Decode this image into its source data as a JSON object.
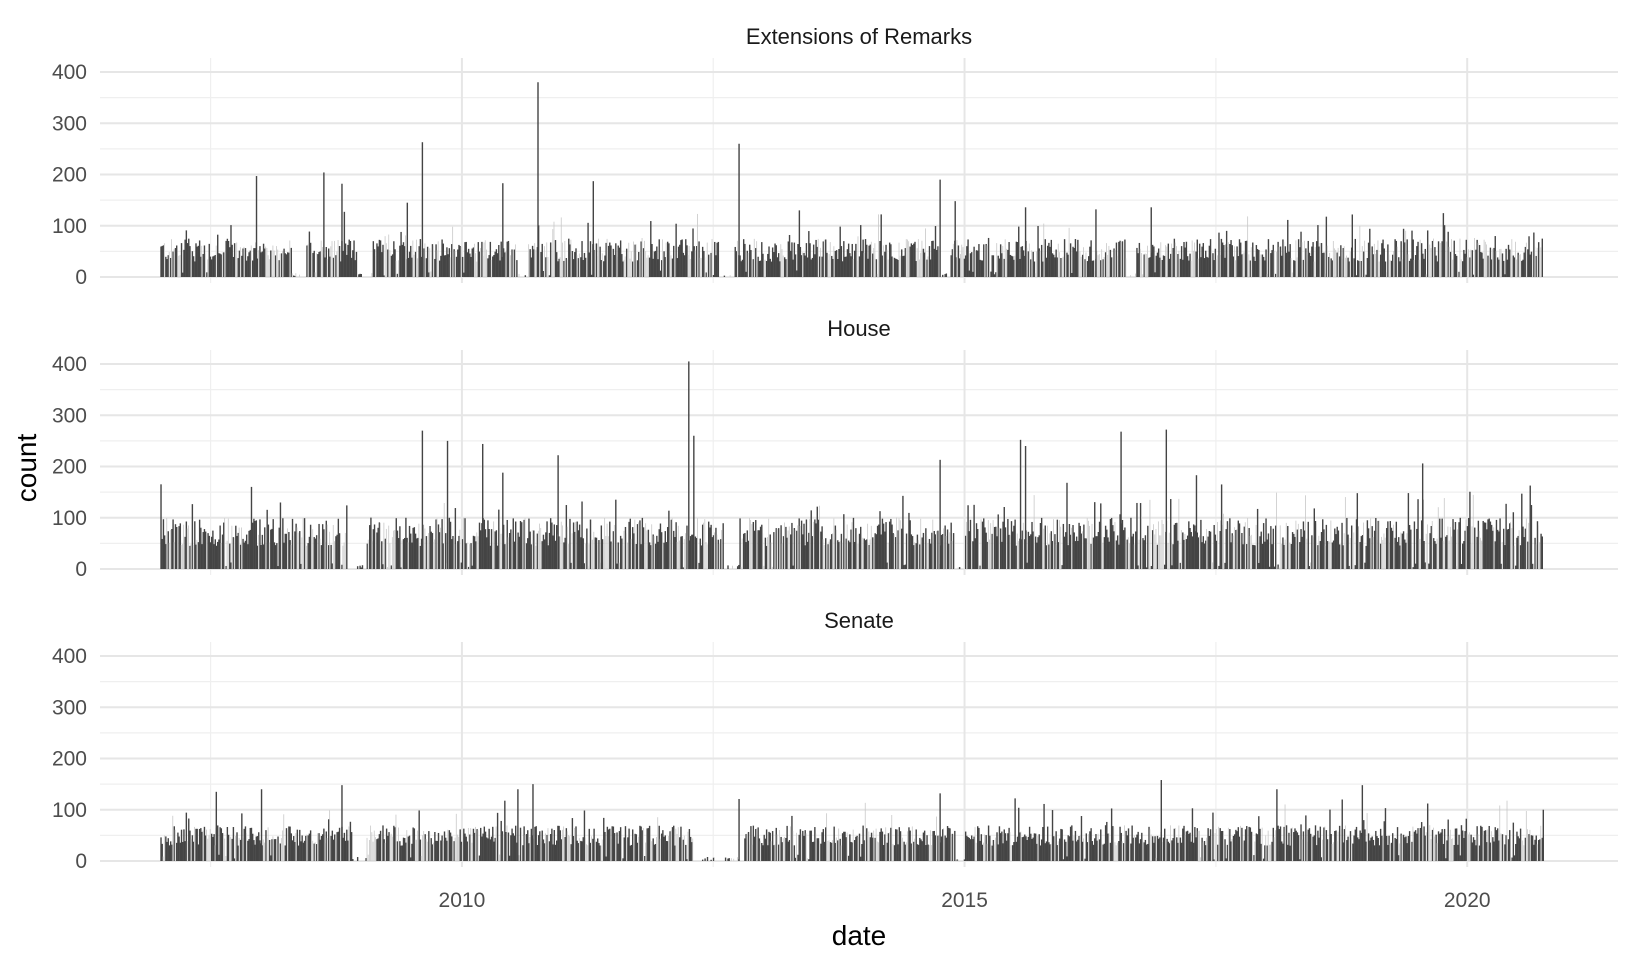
{
  "chart_data": {
    "type": "bar",
    "xlabel": "date",
    "ylabel": "count",
    "x_ticks": [
      {
        "label": "2010",
        "value": 2010.0
      },
      {
        "label": "2015",
        "value": 2015.0
      },
      {
        "label": "2020",
        "value": 2020.0
      }
    ],
    "x_minor_ticks": [
      2007.5,
      2012.5,
      2017.5
    ],
    "xlim": [
      2006.4,
      2021.5
    ],
    "ylim": [
      0,
      400
    ],
    "y_ticks": [
      0,
      100,
      200,
      300,
      400
    ],
    "y_minor_ticks": [
      50,
      150,
      250,
      350
    ],
    "grid": true,
    "theme": "minimal",
    "bar_colors": {
      "dark": "#444444",
      "light": "#c8c8c8"
    },
    "facets": [
      {
        "title": "Extensions of Remarks",
        "data_start": 2007.0,
        "data_end": 2020.75,
        "baseline_range": [
          30,
          75
        ],
        "gaps": [
          [
            2008.3,
            2008.45
          ],
          [
            2008.95,
            2009.1
          ],
          [
            2010.55,
            2010.65
          ],
          [
            2012.55,
            2012.7
          ],
          [
            2014.75,
            2014.85
          ],
          [
            2016.6,
            2016.7
          ]
        ],
        "peaks": [
          {
            "x": 2007.95,
            "y": 197
          },
          {
            "x": 2008.62,
            "y": 204
          },
          {
            "x": 2008.8,
            "y": 182
          },
          {
            "x": 2009.45,
            "y": 145
          },
          {
            "x": 2009.6,
            "y": 263
          },
          {
            "x": 2010.4,
            "y": 183
          },
          {
            "x": 2010.75,
            "y": 380
          },
          {
            "x": 2011.3,
            "y": 187
          },
          {
            "x": 2012.75,
            "y": 260
          },
          {
            "x": 2013.35,
            "y": 130
          },
          {
            "x": 2014.75,
            "y": 190
          },
          {
            "x": 2014.9,
            "y": 148
          },
          {
            "x": 2015.6,
            "y": 136
          },
          {
            "x": 2016.3,
            "y": 132
          },
          {
            "x": 2016.85,
            "y": 136
          },
          {
            "x": 2017.6,
            "y": 90
          },
          {
            "x": 2018.85,
            "y": 122
          }
        ]
      },
      {
        "title": "House",
        "data_start": 2007.0,
        "data_end": 2020.75,
        "baseline_range": [
          45,
          100
        ],
        "gaps": [
          [
            2008.85,
            2009.05
          ],
          [
            2012.6,
            2012.75
          ],
          [
            2014.9,
            2015.0
          ]
        ],
        "peaks": [
          {
            "x": 2009.6,
            "y": 270
          },
          {
            "x": 2009.85,
            "y": 250
          },
          {
            "x": 2010.2,
            "y": 244
          },
          {
            "x": 2010.4,
            "y": 188
          },
          {
            "x": 2010.95,
            "y": 222
          },
          {
            "x": 2012.25,
            "y": 405
          },
          {
            "x": 2012.3,
            "y": 260
          },
          {
            "x": 2014.75,
            "y": 213
          },
          {
            "x": 2015.55,
            "y": 252
          },
          {
            "x": 2015.6,
            "y": 240
          },
          {
            "x": 2016.55,
            "y": 268
          },
          {
            "x": 2017.0,
            "y": 272
          },
          {
            "x": 2017.3,
            "y": 183
          },
          {
            "x": 2017.55,
            "y": 165
          },
          {
            "x": 2018.9,
            "y": 148
          },
          {
            "x": 2019.55,
            "y": 206
          }
        ]
      },
      {
        "title": "Senate",
        "data_start": 2007.0,
        "data_end": 2020.75,
        "baseline_range": [
          30,
          70
        ],
        "gaps": [
          [
            2008.9,
            2009.05
          ],
          [
            2012.3,
            2012.8
          ],
          [
            2014.9,
            2015.0
          ]
        ],
        "peaks": [
          {
            "x": 2007.55,
            "y": 135
          },
          {
            "x": 2008.0,
            "y": 140
          },
          {
            "x": 2008.8,
            "y": 148
          },
          {
            "x": 2010.55,
            "y": 140
          },
          {
            "x": 2010.7,
            "y": 150
          },
          {
            "x": 2012.75,
            "y": 121
          },
          {
            "x": 2014.75,
            "y": 132
          },
          {
            "x": 2016.95,
            "y": 158
          },
          {
            "x": 2018.1,
            "y": 140
          },
          {
            "x": 2018.95,
            "y": 148
          },
          {
            "x": 2018.75,
            "y": 120
          },
          {
            "x": 2020.75,
            "y": 100
          }
        ]
      }
    ]
  }
}
